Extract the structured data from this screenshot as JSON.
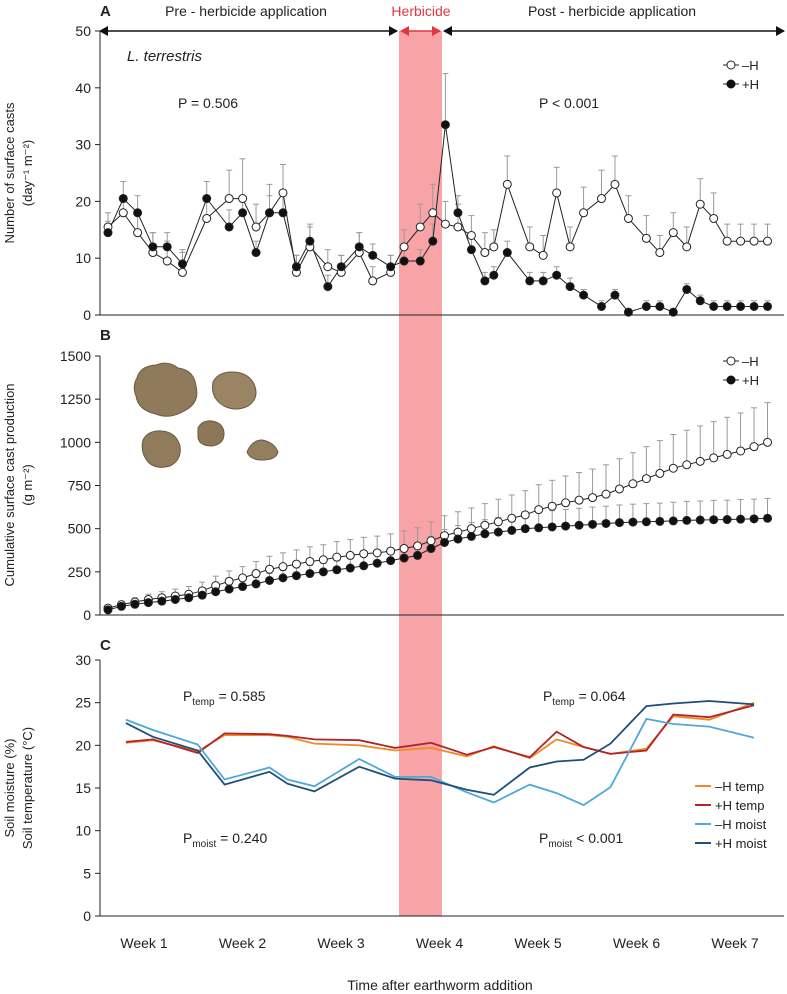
{
  "x_axis": {
    "label": "Time after earthworm addition",
    "ticks": [
      "Week 1",
      "Week 2",
      "Week 3",
      "Week 4",
      "Week 5",
      "Week 6",
      "Week 7"
    ]
  },
  "phases": {
    "pre": "Pre - herbicide application",
    "herbicide": "Herbicide",
    "post": "Post - herbicide application"
  },
  "colors": {
    "herbicide_band": "#f8a3a6",
    "herbicide_text": "#e0383e",
    "minusH_temp": "#f08a24",
    "plusH_temp": "#b3242a",
    "minusH_moist": "#4fa8d8",
    "plusH_moist": "#1f4e79"
  },
  "chart_data": [
    {
      "panel": "A",
      "type": "line",
      "species": "L. terrestris",
      "ylabel_lines": [
        "Number of surface casts",
        "(day⁻¹ m⁻²)"
      ],
      "ylim": [
        0,
        50
      ],
      "yticks": [
        "0",
        "10",
        "20",
        "30",
        "40",
        "50"
      ],
      "x_range": [
        0,
        7.4
      ],
      "stats": {
        "pre": "P = 0.506",
        "post": "P < 0.001"
      },
      "legend": [
        "–H",
        "+H"
      ],
      "series": [
        {
          "name": "–H",
          "x": [
            0.0,
            0.17,
            0.33,
            0.5,
            0.66,
            0.83,
            1.1,
            1.35,
            1.5,
            1.65,
            1.8,
            1.95,
            2.1,
            2.25,
            2.45,
            2.6,
            2.8,
            2.95,
            3.15,
            3.3,
            3.48,
            3.62,
            3.76,
            3.9,
            4.05,
            4.2,
            4.3,
            4.45,
            4.7,
            4.85,
            5.0,
            5.15,
            5.3,
            5.5,
            5.65,
            5.8,
            6.0,
            6.15,
            6.3,
            6.45,
            6.6,
            6.75,
            6.9,
            7.05,
            7.2,
            7.35
          ],
          "y": [
            15.5,
            18.0,
            14.5,
            11.0,
            9.5,
            7.5,
            17.0,
            20.5,
            20.5,
            15.5,
            18.0,
            21.5,
            7.5,
            12.0,
            8.5,
            7.5,
            11.0,
            6.0,
            7.5,
            12.0,
            15.5,
            18.0,
            16.0,
            15.5,
            14.0,
            11.0,
            12.0,
            23.0,
            12.0,
            10.5,
            21.5,
            12.0,
            18.0,
            20.5,
            23.0,
            17.0,
            13.5,
            11.0,
            14.5,
            12.0,
            19.5,
            17.0,
            13.0,
            13.0,
            13.0,
            13.0
          ],
          "err": [
            2.5,
            3.0,
            3.0,
            3.5,
            3.5,
            3.5,
            4.0,
            5.0,
            7.0,
            4.0,
            5.0,
            5.0,
            3.0,
            4.0,
            3.0,
            3.0,
            3.5,
            2.5,
            3.0,
            3.0,
            4.0,
            5.0,
            4.0,
            4.0,
            3.5,
            3.5,
            3.0,
            5.0,
            3.5,
            3.5,
            4.5,
            3.5,
            4.5,
            5.0,
            5.0,
            4.0,
            4.0,
            3.0,
            3.5,
            3.5,
            4.5,
            4.5,
            3.0,
            3.0,
            3.0,
            3.0
          ]
        },
        {
          "name": "+H",
          "x": [
            0.0,
            0.17,
            0.33,
            0.5,
            0.66,
            0.83,
            1.1,
            1.35,
            1.5,
            1.65,
            1.8,
            1.95,
            2.1,
            2.25,
            2.45,
            2.6,
            2.8,
            2.95,
            3.15,
            3.3,
            3.48,
            3.62,
            3.76,
            3.9,
            4.05,
            4.2,
            4.3,
            4.45,
            4.7,
            4.85,
            5.0,
            5.15,
            5.3,
            5.5,
            5.65,
            5.8,
            6.0,
            6.15,
            6.3,
            6.45,
            6.6,
            6.75,
            6.9,
            7.05,
            7.2,
            7.35
          ],
          "y": [
            14.5,
            20.5,
            18.0,
            12.0,
            12.0,
            9.0,
            20.5,
            15.5,
            18.0,
            11.0,
            18.0,
            18.0,
            8.5,
            13.0,
            5.0,
            8.5,
            12.0,
            10.5,
            8.5,
            9.5,
            9.5,
            13.0,
            33.5,
            18.0,
            11.5,
            6.0,
            7.0,
            11.0,
            6.0,
            6.0,
            7.0,
            5.0,
            3.5,
            1.5,
            3.5,
            0.5,
            1.5,
            1.5,
            0.5,
            4.5,
            2.5,
            1.5,
            1.5,
            1.5,
            1.5,
            1.5
          ],
          "err": [
            2.0,
            3.0,
            3.0,
            2.5,
            2.5,
            2.5,
            3.0,
            3.0,
            3.0,
            2.0,
            3.0,
            3.0,
            2.0,
            2.5,
            2.0,
            2.0,
            2.5,
            2.0,
            2.0,
            2.0,
            2.0,
            3.0,
            9.0,
            3.0,
            2.0,
            1.5,
            1.5,
            2.0,
            1.5,
            1.5,
            1.5,
            1.5,
            1.0,
            1.0,
            1.0,
            0.5,
            1.0,
            1.0,
            0.5,
            1.0,
            1.0,
            1.0,
            1.0,
            1.0,
            1.0,
            1.0
          ]
        }
      ]
    },
    {
      "panel": "B",
      "type": "line",
      "ylabel_lines": [
        "Cumulative surface cast production",
        "(g m⁻²)"
      ],
      "ylim": [
        0,
        1500
      ],
      "yticks": [
        "0",
        "250",
        "500",
        "750",
        "1000",
        "1250",
        "1500"
      ],
      "x_range": [
        0,
        7.4
      ],
      "legend": [
        "–H",
        "+H"
      ],
      "series": [
        {
          "name": "–H",
          "x": [
            0.0,
            0.15,
            0.3,
            0.45,
            0.6,
            0.75,
            0.9,
            1.05,
            1.2,
            1.35,
            1.5,
            1.65,
            1.8,
            1.95,
            2.1,
            2.25,
            2.4,
            2.55,
            2.7,
            2.85,
            3.0,
            3.15,
            3.3,
            3.45,
            3.6,
            3.75,
            3.9,
            4.05,
            4.2,
            4.35,
            4.5,
            4.65,
            4.8,
            4.95,
            5.1,
            5.25,
            5.4,
            5.55,
            5.7,
            5.85,
            6.0,
            6.15,
            6.3,
            6.45,
            6.6,
            6.75,
            6.9,
            7.05,
            7.2,
            7.35
          ],
          "y": [
            40,
            60,
            75,
            90,
            100,
            110,
            120,
            140,
            170,
            195,
            215,
            240,
            265,
            280,
            295,
            310,
            320,
            335,
            345,
            355,
            360,
            370,
            385,
            400,
            430,
            460,
            480,
            500,
            520,
            540,
            560,
            580,
            610,
            630,
            650,
            665,
            680,
            700,
            730,
            760,
            790,
            820,
            850,
            870,
            890,
            910,
            930,
            950,
            975,
            1000
          ],
          "err": [
            15,
            20,
            25,
            30,
            35,
            40,
            45,
            50,
            55,
            60,
            65,
            70,
            75,
            80,
            82,
            85,
            87,
            90,
            92,
            95,
            97,
            100,
            102,
            105,
            110,
            115,
            118,
            120,
            125,
            130,
            135,
            140,
            145,
            150,
            155,
            160,
            165,
            170,
            175,
            180,
            185,
            190,
            195,
            200,
            205,
            210,
            215,
            220,
            225,
            230
          ]
        },
        {
          "name": "+H",
          "x": [
            0.0,
            0.15,
            0.3,
            0.45,
            0.6,
            0.75,
            0.9,
            1.05,
            1.2,
            1.35,
            1.5,
            1.65,
            1.8,
            1.95,
            2.1,
            2.25,
            2.4,
            2.55,
            2.7,
            2.85,
            3.0,
            3.15,
            3.3,
            3.45,
            3.6,
            3.75,
            3.9,
            4.05,
            4.2,
            4.35,
            4.5,
            4.65,
            4.8,
            4.95,
            5.1,
            5.25,
            5.4,
            5.55,
            5.7,
            5.85,
            6.0,
            6.15,
            6.3,
            6.45,
            6.6,
            6.75,
            6.9,
            7.05,
            7.2,
            7.35
          ],
          "y": [
            30,
            50,
            62,
            72,
            80,
            90,
            100,
            115,
            135,
            150,
            165,
            180,
            200,
            215,
            228,
            240,
            250,
            262,
            272,
            285,
            300,
            315,
            330,
            345,
            385,
            420,
            440,
            455,
            470,
            480,
            490,
            500,
            505,
            510,
            515,
            520,
            525,
            530,
            535,
            538,
            540,
            542,
            545,
            548,
            550,
            552,
            553,
            555,
            557,
            560
          ],
          "err": [
            10,
            12,
            14,
            16,
            18,
            20,
            22,
            25,
            28,
            30,
            33,
            36,
            40,
            43,
            45,
            47,
            50,
            52,
            54,
            56,
            58,
            60,
            62,
            65,
            70,
            75,
            78,
            80,
            82,
            85,
            88,
            90,
            92,
            94,
            96,
            98,
            100,
            100,
            102,
            104,
            105,
            106,
            108,
            110,
            110,
            112,
            112,
            114,
            114,
            115
          ]
        }
      ]
    },
    {
      "panel": "C",
      "type": "line",
      "ylabel_lines": [
        "Soil moisture (%)",
        "Soil temperature (°C)"
      ],
      "ylim": [
        0,
        30
      ],
      "yticks": [
        "0",
        "5",
        "10",
        "15",
        "20",
        "25",
        "30"
      ],
      "x_range": [
        0,
        7.4
      ],
      "stats": {
        "pre_temp": [
          "P",
          "temp",
          " = 0.585"
        ],
        "post_temp": [
          "P",
          "temp",
          " = 0.064"
        ],
        "pre_moist": [
          "P",
          "moist",
          " = 0.240"
        ],
        "post_moist": [
          "P",
          "moist",
          " < 0.001"
        ]
      },
      "legend": [
        "–H temp",
        "+H temp",
        "–H moist",
        "+H moist"
      ],
      "series": [
        {
          "name": "–H temp",
          "x": [
            0.2,
            0.5,
            1.0,
            1.3,
            1.8,
            2.0,
            2.3,
            2.8,
            3.2,
            3.6,
            4.0,
            4.3,
            4.7,
            5.0,
            5.3,
            5.6,
            6.0,
            6.3,
            6.7,
            7.2
          ],
          "y": [
            20.3,
            20.6,
            19.3,
            21.2,
            21.2,
            21.0,
            20.2,
            20.0,
            19.4,
            19.7,
            18.7,
            19.9,
            18.5,
            20.7,
            19.8,
            19.0,
            19.6,
            23.4,
            23.0,
            25.0
          ]
        },
        {
          "name": "+H temp",
          "x": [
            0.2,
            0.5,
            1.0,
            1.3,
            1.8,
            2.0,
            2.3,
            2.8,
            3.2,
            3.6,
            4.0,
            4.3,
            4.7,
            5.0,
            5.3,
            5.6,
            6.0,
            6.3,
            6.7,
            7.2
          ],
          "y": [
            20.4,
            20.7,
            19.1,
            21.4,
            21.3,
            21.1,
            20.7,
            20.6,
            19.7,
            20.3,
            18.9,
            19.8,
            18.6,
            21.6,
            19.8,
            19.0,
            19.4,
            23.6,
            23.3,
            24.7
          ]
        },
        {
          "name": "–H moist",
          "x": [
            0.2,
            0.5,
            1.0,
            1.3,
            1.8,
            2.0,
            2.3,
            2.8,
            3.2,
            3.6,
            4.0,
            4.3,
            4.7,
            5.0,
            5.3,
            5.6,
            6.0,
            6.3,
            6.7,
            7.2
          ],
          "y": [
            23.0,
            21.8,
            20.1,
            16.0,
            17.4,
            16.0,
            15.2,
            18.4,
            16.3,
            16.3,
            14.5,
            13.3,
            15.4,
            14.4,
            13.0,
            15.1,
            23.1,
            22.5,
            22.2,
            20.9
          ]
        },
        {
          "name": "+H moist",
          "x": [
            0.2,
            0.5,
            1.0,
            1.3,
            1.8,
            2.0,
            2.3,
            2.8,
            3.2,
            3.6,
            4.0,
            4.3,
            4.7,
            5.0,
            5.3,
            5.6,
            6.0,
            6.3,
            6.7,
            7.2
          ],
          "y": [
            22.6,
            21.0,
            19.4,
            15.4,
            16.9,
            15.5,
            14.6,
            17.5,
            16.1,
            15.9,
            14.8,
            14.2,
            17.4,
            18.1,
            18.3,
            20.2,
            24.6,
            24.9,
            25.2,
            24.8
          ]
        }
      ]
    }
  ]
}
